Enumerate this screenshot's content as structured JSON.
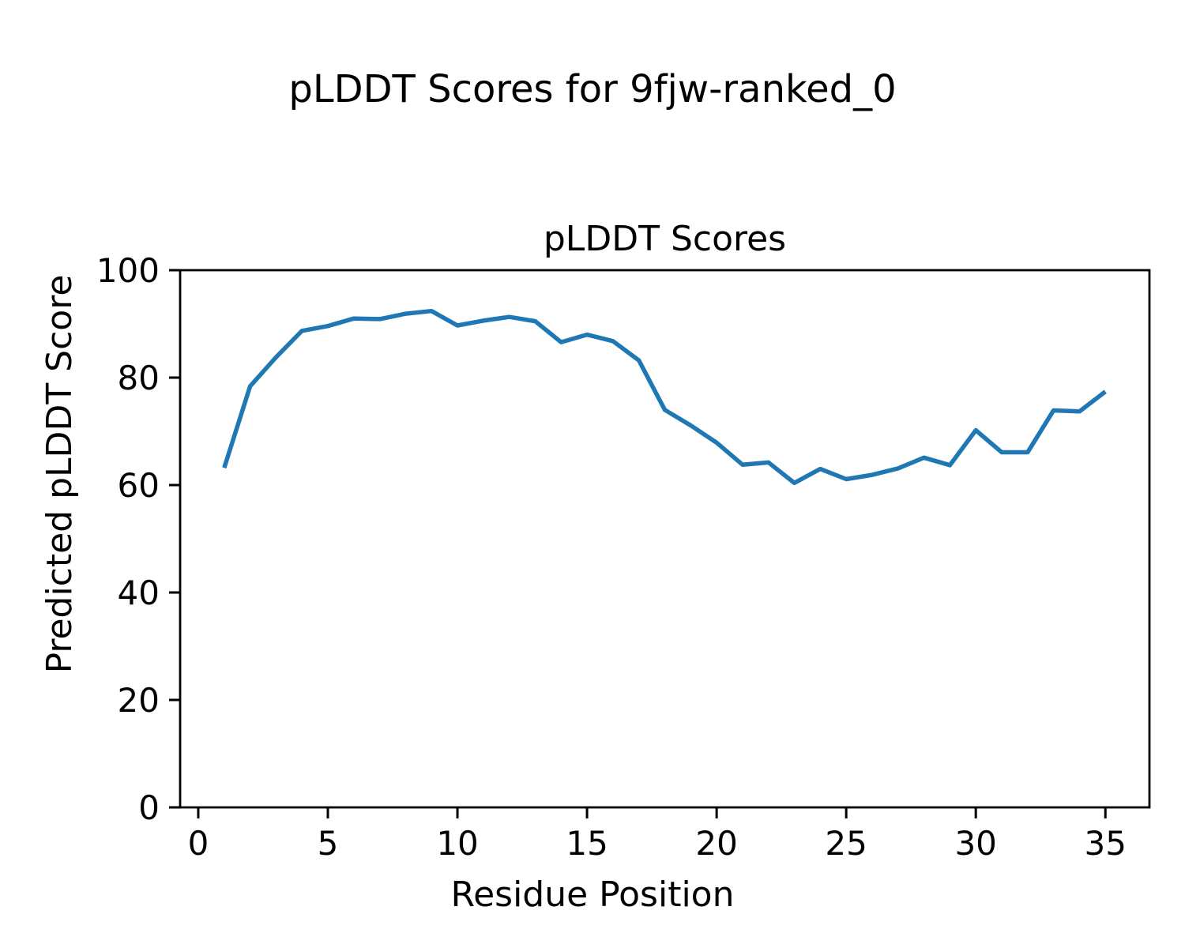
{
  "figure": {
    "suptitle": "pLDDT Scores for 9fjw-ranked_0",
    "axes_title": "pLDDT Scores",
    "xlabel": "Residue Position",
    "ylabel": "Predicted pLDDT Score"
  },
  "chart_data": {
    "type": "line",
    "title": "pLDDT Scores",
    "suptitle": "pLDDT Scores for 9fjw-ranked_0",
    "xlabel": "Residue Position",
    "ylabel": "Predicted pLDDT Score",
    "x": [
      1,
      2,
      3,
      4,
      5,
      6,
      7,
      8,
      9,
      10,
      11,
      12,
      13,
      14,
      15,
      16,
      17,
      18,
      19,
      20,
      21,
      22,
      23,
      24,
      25,
      26,
      27,
      28,
      29,
      30,
      31,
      32,
      33,
      34,
      35
    ],
    "y": [
      63.2,
      78.4,
      83.8,
      88.7,
      89.6,
      91.0,
      90.9,
      91.9,
      92.4,
      89.7,
      90.6,
      91.3,
      90.5,
      86.6,
      88.0,
      86.8,
      83.2,
      74.0,
      71.1,
      67.9,
      63.8,
      64.2,
      60.4,
      63.0,
      61.1,
      61.9,
      63.1,
      65.1,
      63.7,
      70.2,
      66.1,
      66.1,
      73.9,
      73.7,
      77.4
    ],
    "xticks": [
      0,
      5,
      10,
      15,
      20,
      25,
      30,
      35
    ],
    "yticks": [
      0,
      20,
      40,
      60,
      80,
      100
    ],
    "xlim": [
      -0.7,
      36.7
    ],
    "ylim": [
      0,
      100
    ],
    "grid": false,
    "legend_position": "none",
    "line_color": "#1f77b4",
    "axis_color": "#000000",
    "background_color": "#ffffff",
    "line_width": 5.5
  }
}
